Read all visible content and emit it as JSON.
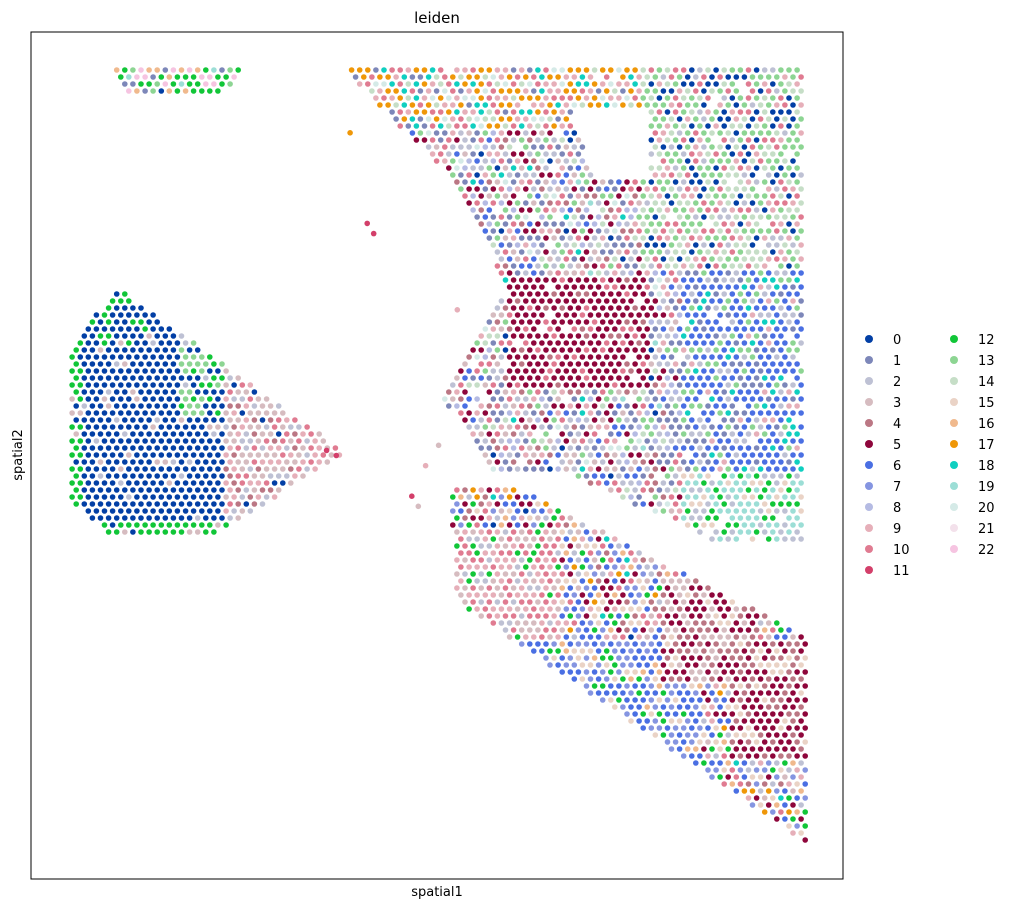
{
  "chart_data": {
    "type": "scatter",
    "title": "leiden",
    "xlabel": "spatial1",
    "ylabel": "spatial2",
    "xticks": [],
    "yticks": [],
    "grid": false,
    "legend_placement": "right, outside plot, 2 columns",
    "y_axis_inverted": true,
    "note_units": "arbitrary spatial coordinates, x 0-100 left-to-right, y 0-100 top-to-bottom",
    "xlim": [
      0,
      100
    ],
    "ylim": [
      0,
      100
    ],
    "legend": [
      {
        "label": "0",
        "color": "#023fa5"
      },
      {
        "label": "1",
        "color": "#7d87b9"
      },
      {
        "label": "2",
        "color": "#bec1d4"
      },
      {
        "label": "3",
        "color": "#d6bcc0"
      },
      {
        "label": "4",
        "color": "#bb7784"
      },
      {
        "label": "5",
        "color": "#8e063b"
      },
      {
        "label": "6",
        "color": "#4a6fe3"
      },
      {
        "label": "7",
        "color": "#8595e1"
      },
      {
        "label": "8",
        "color": "#b5bbe3"
      },
      {
        "label": "9",
        "color": "#e6afb9"
      },
      {
        "label": "10",
        "color": "#e07b91"
      },
      {
        "label": "11",
        "color": "#d33f6a"
      },
      {
        "label": "12",
        "color": "#11c638"
      },
      {
        "label": "13",
        "color": "#8dd593"
      },
      {
        "label": "14",
        "color": "#c6dec7"
      },
      {
        "label": "15",
        "color": "#ead3c6"
      },
      {
        "label": "16",
        "color": "#f0b98d"
      },
      {
        "label": "17",
        "color": "#ef9708"
      },
      {
        "label": "18",
        "color": "#0fcfc0"
      },
      {
        "label": "19",
        "color": "#9cded6"
      },
      {
        "label": "20",
        "color": "#d5eae7"
      },
      {
        "label": "21",
        "color": "#f3e1eb"
      },
      {
        "label": "22",
        "color": "#f6c4e1"
      }
    ],
    "regions": [
      {
        "name": "left-triangle",
        "x_range": [
          4,
          39
        ],
        "y_range": [
          29.5,
          60
        ],
        "apex": [
          11,
          29.5
        ],
        "tip": [
          39,
          49
        ],
        "cluster_mix": {
          "0": 0.55,
          "12": 0.22,
          "3": 0.08,
          "13": 0.05,
          "10": 0.04,
          "9": 0.03,
          "2": 0.03
        }
      },
      {
        "name": "top-left-strip",
        "x_range": [
          10,
          26
        ],
        "y_range": [
          4.5,
          7.5
        ],
        "cluster_mix": {
          "12": 0.3,
          "22": 0.2,
          "13": 0.15,
          "0": 0.1,
          "1": 0.1,
          "16": 0.1,
          "19": 0.05
        }
      },
      {
        "name": "upper-right-block",
        "x_range": [
          39,
          95.5
        ],
        "y_range": [
          4.5,
          62
        ],
        "cluster_mix": {
          "1": 0.14,
          "2": 0.14,
          "3": 0.08,
          "4": 0.08,
          "5": 0.1,
          "6": 0.08,
          "8": 0.07,
          "9": 0.07,
          "10": 0.07,
          "13": 0.06,
          "14": 0.04,
          "20": 0.03,
          "0": 0.02,
          "18": 0.01,
          "19": 0.01
        }
      },
      {
        "name": "lower-right-block",
        "x_range": [
          52,
          96
        ],
        "y_range": [
          57,
          96
        ],
        "cluster_mix": {
          "6": 0.14,
          "7": 0.12,
          "9": 0.1,
          "15": 0.1,
          "10": 0.08,
          "5": 0.1,
          "12": 0.08,
          "2": 0.06,
          "3": 0.06,
          "4": 0.06,
          "16": 0.04,
          "17": 0.03,
          "18": 0.02,
          "0": 0.01
        }
      }
    ],
    "outlier_points": [
      {
        "x": 39.3,
        "y": 11.9,
        "cluster": "17"
      },
      {
        "x": 41.4,
        "y": 22.6,
        "cluster": "11"
      },
      {
        "x": 42.2,
        "y": 23.8,
        "cluster": "11"
      },
      {
        "x": 52.5,
        "y": 32.8,
        "cluster": "9"
      },
      {
        "x": 46.9,
        "y": 54.8,
        "cluster": "11"
      },
      {
        "x": 47.7,
        "y": 56.0,
        "cluster": "3"
      },
      {
        "x": 48.6,
        "y": 51.2,
        "cluster": "9"
      },
      {
        "x": 50.2,
        "y": 48.8,
        "cluster": "3"
      },
      {
        "x": 36.4,
        "y": 49.4,
        "cluster": "11"
      },
      {
        "x": 37.6,
        "y": 50.0,
        "cluster": "11"
      }
    ]
  }
}
